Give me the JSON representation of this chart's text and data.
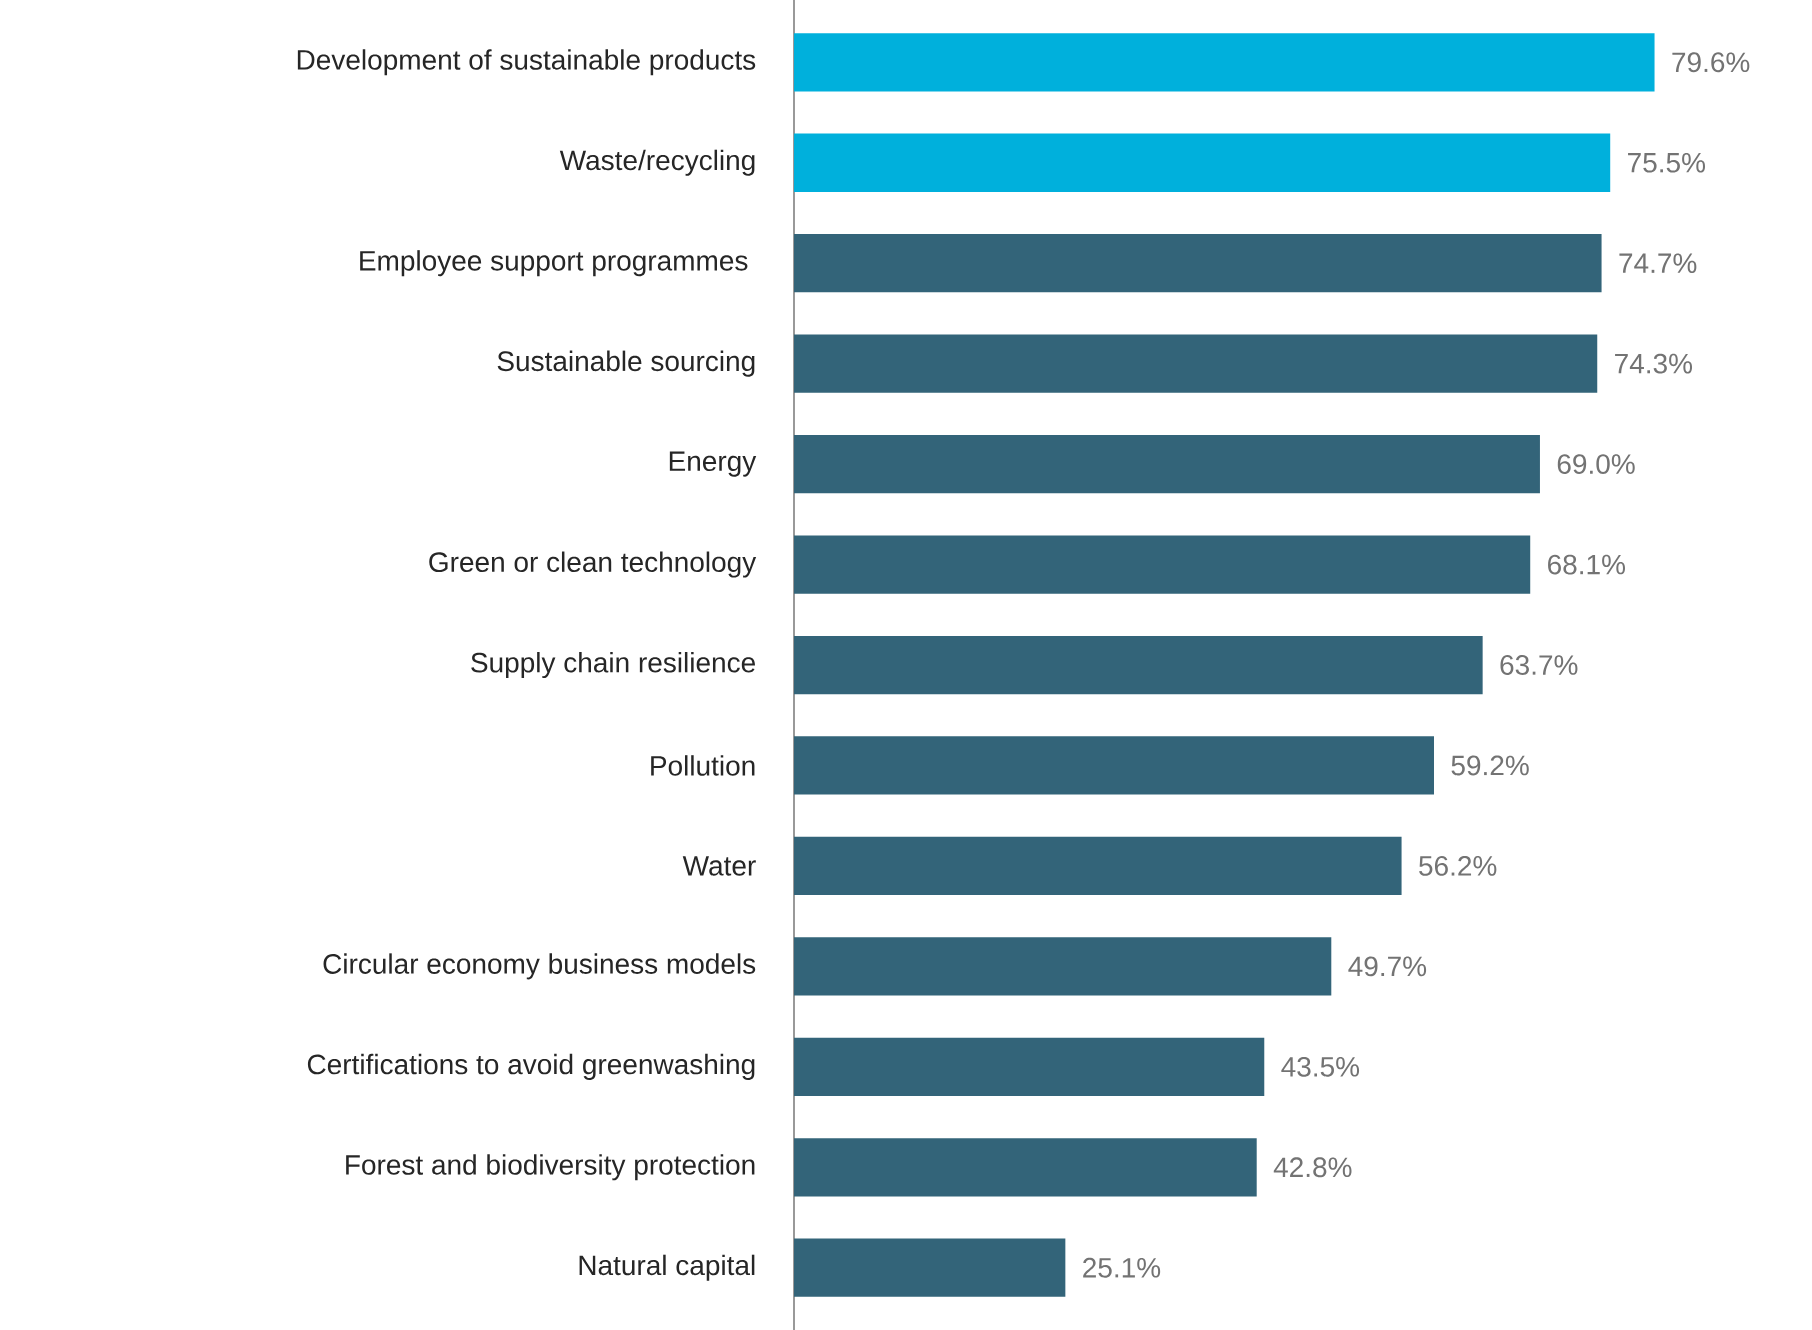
{
  "chart_data": {
    "type": "bar",
    "orientation": "horizontal",
    "categories": [
      "Development of sustainable products",
      "Waste/recycling",
      "Employee support programmes ",
      "Sustainable sourcing",
      "Energy",
      "Green or clean technology",
      "Supply chain resilience",
      "Pollution",
      "Water",
      "Circular economy business models",
      "Certifications to avoid greenwashing",
      "Forest and biodiversity protection",
      "Natural capital"
    ],
    "values": [
      79.6,
      75.5,
      74.7,
      74.3,
      69.0,
      68.1,
      63.7,
      59.2,
      56.2,
      49.7,
      43.5,
      42.8,
      25.1
    ],
    "value_labels": [
      "79.6%",
      "75.5%",
      "74.7%",
      "74.3%",
      "69.0%",
      "68.1%",
      "63.7%",
      "59.2%",
      "56.2%",
      "49.7%",
      "43.5%",
      "42.8%",
      "25.1%"
    ],
    "colors": [
      "#00b0dc",
      "#00b0dc",
      "#336479",
      "#336479",
      "#336479",
      "#336479",
      "#336479",
      "#336479",
      "#336479",
      "#336479",
      "#336479",
      "#336479",
      "#336479"
    ]
  }
}
